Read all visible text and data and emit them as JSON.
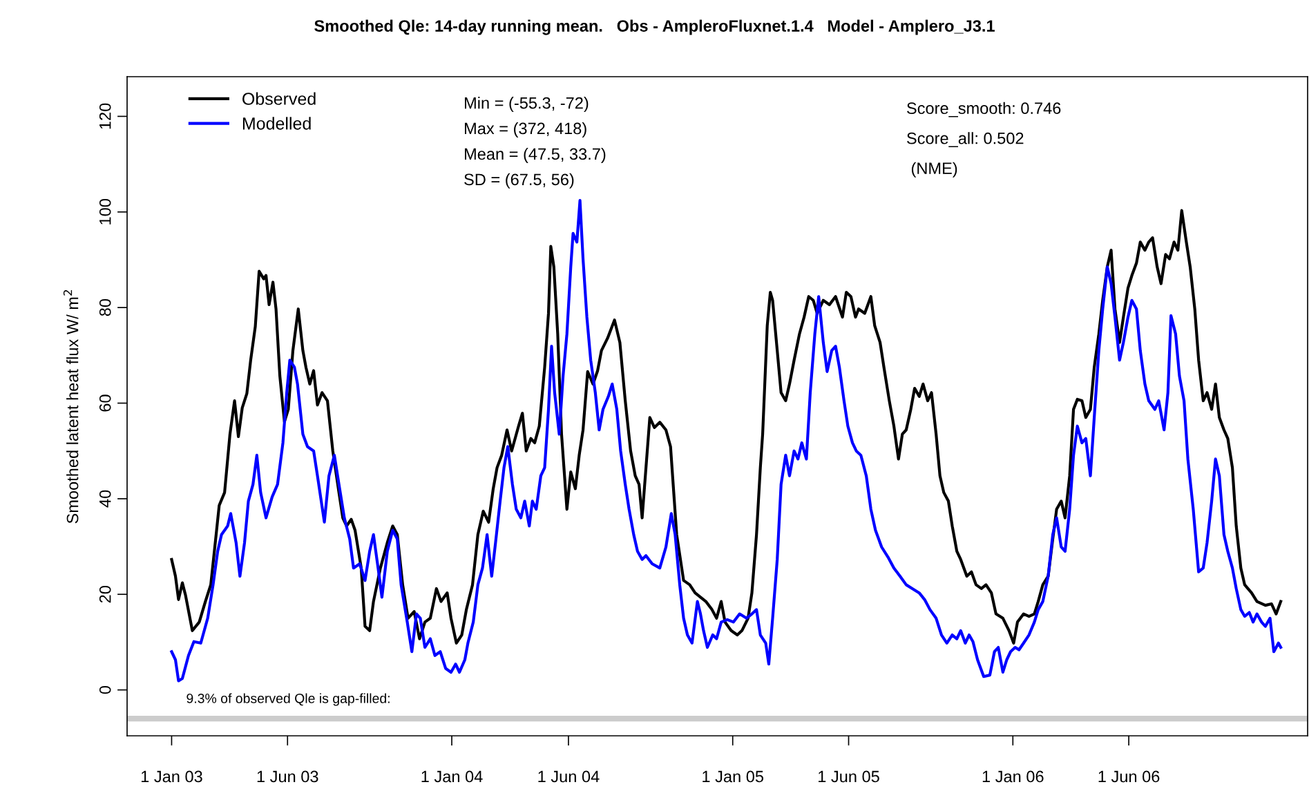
{
  "chart_data": {
    "type": "line",
    "title": "Smoothed Qle: 14-day running mean.   Obs - AmpleroFluxnet.1.4   Model - Amplero_J3.1",
    "ylabel": "Smoothed latent heat flux W/ m$^{2}$",
    "xlim": [
      "2002-11-04",
      "2007-01-20"
    ],
    "ylim": [
      -9.6,
      128.3
    ],
    "xticks": [
      {
        "value": "2003-01-01",
        "label": "1 Jan 03"
      },
      {
        "value": "2003-06-01",
        "label": "1 Jun 03"
      },
      {
        "value": "2004-01-01",
        "label": "1 Jan 04"
      },
      {
        "value": "2004-06-01",
        "label": "1 Jun 04"
      },
      {
        "value": "2005-01-01",
        "label": "1 Jan 05"
      },
      {
        "value": "2005-06-01",
        "label": "1 Jun 05"
      },
      {
        "value": "2006-01-01",
        "label": "1 Jan 06"
      },
      {
        "value": "2006-06-01",
        "label": "1 Jun 06"
      }
    ],
    "yticks": [
      0,
      20,
      40,
      60,
      80,
      100,
      120
    ],
    "grid": false,
    "legend": "top left",
    "marker": "none",
    "line_style": "solid",
    "annotations": [
      "Min = (-55.3, -72)",
      "Max = (372, 418)",
      "Mean = (47.5, 33.7)",
      "SD = (67.5, 56)",
      "Score_smooth: 0.746",
      "Score_all: 0.502",
      " (NME)",
      "9.3% of observed Qle is gap-filled:"
    ],
    "ref_lines": [
      {
        "axis": "y",
        "value": -6,
        "label": null,
        "color": "#cccccc"
      }
    ],
    "series": [
      {
        "name": "Observed",
        "color": "#000000",
        "x": [
          "2003-01-01",
          "2003-01-06",
          "2003-01-10",
          "2003-01-15",
          "2003-01-19",
          "2003-01-28",
          "2003-02-06",
          "2003-02-14",
          "2003-02-21",
          "2003-02-28",
          "2003-03-04",
          "2003-03-11",
          "2003-03-18",
          "2003-03-24",
          "2003-03-29",
          "2003-04-03",
          "2003-04-09",
          "2003-04-14",
          "2003-04-20",
          "2003-04-25",
          "2003-05-01",
          "2003-05-04",
          "2003-05-08",
          "2003-05-13",
          "2003-05-17",
          "2003-05-22",
          "2003-05-28",
          "2003-06-02",
          "2003-06-08",
          "2003-06-15",
          "2003-06-21",
          "2003-06-25",
          "2003-06-30",
          "2003-07-05",
          "2003-07-10",
          "2003-07-16",
          "2003-07-23",
          "2003-07-30",
          "2003-08-07",
          "2003-08-12",
          "2003-08-17",
          "2003-08-23",
          "2003-08-28",
          "2003-09-05",
          "2003-09-10",
          "2003-09-16",
          "2003-09-21",
          "2003-09-30",
          "2003-10-09",
          "2003-10-16",
          "2003-10-22",
          "2003-10-29",
          "2003-11-05",
          "2003-11-13",
          "2003-11-20",
          "2003-11-27",
          "2003-12-04",
          "2003-12-12",
          "2003-12-18",
          "2003-12-26",
          "2003-12-31",
          "2004-01-07",
          "2004-01-14",
          "2004-01-20",
          "2004-01-28",
          "2004-02-04",
          "2004-02-11",
          "2004-02-18",
          "2004-02-24",
          "2004-02-29",
          "2004-03-06",
          "2004-03-13",
          "2004-03-19",
          "2004-03-28",
          "2004-04-02",
          "2004-04-07",
          "2004-04-13",
          "2004-04-18",
          "2004-04-24",
          "2004-05-01",
          "2004-05-06",
          "2004-05-09",
          "2004-05-13",
          "2004-05-18",
          "2004-05-23",
          "2004-05-30",
          "2004-06-04",
          "2004-06-10",
          "2004-06-15",
          "2004-06-20",
          "2004-06-26",
          "2004-07-03",
          "2004-07-09",
          "2004-07-14",
          "2004-07-22",
          "2004-07-31",
          "2004-08-07",
          "2004-08-14",
          "2004-08-21",
          "2004-08-27",
          "2004-09-01",
          "2004-09-05",
          "2004-09-10",
          "2004-09-15",
          "2004-09-21",
          "2004-09-28",
          "2004-10-06",
          "2004-10-12",
          "2004-10-20",
          "2004-10-29",
          "2004-11-06",
          "2004-11-13",
          "2004-11-20",
          "2004-11-27",
          "2004-12-05",
          "2004-12-11",
          "2004-12-17",
          "2004-12-22",
          "2004-12-30",
          "2005-01-07",
          "2005-01-13",
          "2005-01-21",
          "2005-01-26",
          "2005-02-01",
          "2005-02-06",
          "2005-02-09",
          "2005-02-15",
          "2005-02-19",
          "2005-02-22",
          "2005-02-28",
          "2005-03-05",
          "2005-03-11",
          "2005-03-16",
          "2005-03-22",
          "2005-03-29",
          "2005-04-04",
          "2005-04-10",
          "2005-04-16",
          "2005-04-21",
          "2005-04-29",
          "2005-05-07",
          "2005-05-15",
          "2005-05-24",
          "2005-05-29",
          "2005-06-04",
          "2005-06-10",
          "2005-06-14",
          "2005-06-22",
          "2005-06-30",
          "2005-07-05",
          "2005-07-12",
          "2005-07-17",
          "2005-07-24",
          "2005-07-30",
          "2005-08-05",
          "2005-08-10",
          "2005-08-15",
          "2005-08-21",
          "2005-08-26",
          "2005-09-01",
          "2005-09-06",
          "2005-09-12",
          "2005-09-17",
          "2005-09-23",
          "2005-09-28",
          "2005-10-03",
          "2005-10-09",
          "2005-10-14",
          "2005-10-20",
          "2005-10-25",
          "2005-11-02",
          "2005-11-08",
          "2005-11-14",
          "2005-11-21",
          "2005-11-27",
          "2005-12-04",
          "2005-12-10",
          "2005-12-19",
          "2005-12-27",
          "2006-01-02",
          "2006-01-07",
          "2006-01-15",
          "2006-01-22",
          "2006-01-29",
          "2006-02-03",
          "2006-02-09",
          "2006-02-16",
          "2006-02-22",
          "2006-02-27",
          "2006-03-05",
          "2006-03-10",
          "2006-03-16",
          "2006-03-21",
          "2006-03-26",
          "2006-04-01",
          "2006-04-06",
          "2006-04-12",
          "2006-04-17",
          "2006-04-23",
          "2006-04-28",
          "2006-05-04",
          "2006-05-09",
          "2006-05-14",
          "2006-05-20",
          "2006-05-25",
          "2006-05-31",
          "2006-06-05",
          "2006-06-11",
          "2006-06-16",
          "2006-06-22",
          "2006-06-27",
          "2006-07-02",
          "2006-07-08",
          "2006-07-13",
          "2006-07-19",
          "2006-07-24",
          "2006-07-30",
          "2006-08-04",
          "2006-08-09",
          "2006-08-15",
          "2006-08-20",
          "2006-08-26",
          "2006-08-31",
          "2006-09-06",
          "2006-09-11",
          "2006-09-17",
          "2006-09-22",
          "2006-09-27",
          "2006-10-03",
          "2006-10-08",
          "2006-10-14",
          "2006-10-19",
          "2006-10-25",
          "2006-10-30",
          "2006-11-08",
          "2006-11-15",
          "2006-11-26",
          "2006-12-04",
          "2006-12-10",
          "2006-12-16"
        ],
        "values": [
          27.3,
          23.8,
          18.9,
          22.4,
          19.9,
          12.4,
          14.2,
          18.5,
          22,
          32.5,
          38.6,
          41.3,
          53.5,
          60.5,
          53,
          59,
          62,
          69,
          76,
          87.6,
          86,
          86.7,
          80.6,
          85.3,
          79.7,
          65.7,
          56.1,
          58.7,
          71,
          79.7,
          71,
          67.5,
          64,
          66.8,
          59.6,
          62.2,
          60.5,
          50,
          41.3,
          36,
          34.3,
          35.7,
          33.4,
          25.5,
          13.3,
          12.4,
          18.5,
          25.5,
          30.8,
          34.3,
          32.5,
          22,
          15,
          16.4,
          10.7,
          14.2,
          15,
          21.2,
          18.5,
          20.3,
          15,
          9.8,
          11.5,
          16.8,
          22,
          32.5,
          37.4,
          35.1,
          42.1,
          46.5,
          49.1,
          54.4,
          50,
          55.2,
          57.9,
          50,
          52.6,
          51.7,
          55.2,
          67.5,
          78.8,
          92.8,
          88.5,
          74.5,
          53.5,
          37.8,
          45.6,
          42.1,
          49.1,
          54.4,
          66.6,
          64,
          66.8,
          71,
          73.6,
          77.4,
          72.7,
          60.5,
          50,
          44.8,
          43,
          36,
          46.5,
          57,
          54.9,
          56,
          54.4,
          50.9,
          32.5,
          22.9,
          22,
          20.3,
          19.4,
          18.5,
          16.8,
          15,
          18.5,
          14.2,
          12.4,
          11.5,
          12.4,
          15,
          20.3,
          32.5,
          46.5,
          53.5,
          76.2,
          83.2,
          81.5,
          71,
          62.2,
          60.5,
          64,
          69,
          74.5,
          78,
          82.3,
          81.5,
          78.8,
          81.5,
          80.6,
          82.3,
          78,
          83.2,
          82.3,
          78,
          79.7,
          78.8,
          82.3,
          76.2,
          72.7,
          67.5,
          60.5,
          55.2,
          48.3,
          53.5,
          54.4,
          58.7,
          63.1,
          61.4,
          64,
          60.5,
          62.2,
          53.5,
          44.8,
          41.3,
          39.5,
          34.3,
          29,
          27.3,
          23.8,
          24.7,
          22,
          21.2,
          22,
          20.3,
          15.9,
          15,
          12.4,
          9.8,
          14.2,
          15.9,
          15.4,
          15.9,
          18.5,
          22,
          23.8,
          31.6,
          37.8,
          39.5,
          36,
          44.8,
          58.7,
          60.8,
          60.5,
          57,
          58.7,
          67.5,
          74.5,
          81.5,
          88.5,
          92,
          79.7,
          72.7,
          78,
          84.1,
          86.7,
          89.3,
          93.7,
          92,
          93.7,
          94.6,
          88.5,
          85,
          91.1,
          90.2,
          93.7,
          92,
          100.3,
          93.7,
          88.5,
          79.7,
          69,
          60.5,
          62.2,
          58.7,
          64,
          57,
          54.4,
          52.6,
          46.5,
          34.3,
          25.5,
          22,
          20.3,
          18.5,
          17.7,
          18,
          15.9,
          18.5
        ]
      },
      {
        "name": "Modelled",
        "color": "#0000ff",
        "x": [
          "2003-01-01",
          "2003-01-06",
          "2003-01-10",
          "2003-01-15",
          "2003-01-23",
          "2003-01-30",
          "2003-02-08",
          "2003-02-17",
          "2003-02-24",
          "2003-03-02",
          "2003-03-07",
          "2003-03-15",
          "2003-03-19",
          "2003-03-26",
          "2003-03-31",
          "2003-04-06",
          "2003-04-11",
          "2003-04-17",
          "2003-04-22",
          "2003-04-27",
          "2003-05-04",
          "2003-05-12",
          "2003-05-19",
          "2003-05-26",
          "2003-05-31",
          "2003-06-04",
          "2003-06-10",
          "2003-06-14",
          "2003-06-21",
          "2003-06-27",
          "2003-07-05",
          "2003-07-10",
          "2003-07-19",
          "2003-07-25",
          "2003-08-01",
          "2003-08-07",
          "2003-08-14",
          "2003-08-21",
          "2003-08-26",
          "2003-09-03",
          "2003-09-10",
          "2003-09-16",
          "2003-09-21",
          "2003-09-27",
          "2003-10-02",
          "2003-10-09",
          "2003-10-16",
          "2003-10-22",
          "2003-10-27",
          "2003-11-04",
          "2003-11-10",
          "2003-11-16",
          "2003-11-21",
          "2003-11-27",
          "2003-12-04",
          "2003-12-10",
          "2003-12-17",
          "2003-12-24",
          "2003-12-31",
          "2004-01-06",
          "2004-01-11",
          "2004-01-18",
          "2004-01-22",
          "2004-01-29",
          "2004-02-04",
          "2004-02-10",
          "2004-02-16",
          "2004-02-22",
          "2004-02-27",
          "2004-03-04",
          "2004-03-09",
          "2004-03-14",
          "2004-03-20",
          "2004-03-25",
          "2004-03-31",
          "2004-04-05",
          "2004-04-11",
          "2004-04-15",
          "2004-04-20",
          "2004-04-26",
          "2004-05-01",
          "2004-05-06",
          "2004-05-10",
          "2004-05-14",
          "2004-05-20",
          "2004-05-25",
          "2004-05-30",
          "2004-06-04",
          "2004-06-07",
          "2004-06-12",
          "2004-06-16",
          "2004-06-20",
          "2004-06-25",
          "2004-06-30",
          "2004-07-06",
          "2004-07-11",
          "2004-07-16",
          "2004-07-23",
          "2004-07-28",
          "2004-08-03",
          "2004-08-08",
          "2004-08-14",
          "2004-08-19",
          "2004-08-25",
          "2004-08-30",
          "2004-09-05",
          "2004-09-10",
          "2004-09-18",
          "2004-09-28",
          "2004-10-06",
          "2004-10-13",
          "2004-10-18",
          "2004-10-24",
          "2004-10-29",
          "2004-11-03",
          "2004-11-09",
          "2004-11-16",
          "2004-11-20",
          "2004-11-24",
          "2004-11-29",
          "2004-12-06",
          "2004-12-11",
          "2004-12-17",
          "2004-12-25",
          "2005-01-02",
          "2005-01-10",
          "2005-01-19",
          "2005-01-26",
          "2005-02-01",
          "2005-02-06",
          "2005-02-13",
          "2005-02-17",
          "2005-02-22",
          "2005-02-28",
          "2005-03-05",
          "2005-03-11",
          "2005-03-16",
          "2005-03-22",
          "2005-03-27",
          "2005-04-01",
          "2005-04-07",
          "2005-04-12",
          "2005-04-18",
          "2005-04-23",
          "2005-04-29",
          "2005-05-04",
          "2005-05-10",
          "2005-05-15",
          "2005-05-20",
          "2005-05-26",
          "2005-05-31",
          "2005-06-06",
          "2005-06-11",
          "2005-06-17",
          "2005-06-24",
          "2005-06-30",
          "2005-07-06",
          "2005-07-14",
          "2005-07-23",
          "2005-07-30",
          "2005-08-07",
          "2005-08-15",
          "2005-08-23",
          "2005-09-01",
          "2005-09-08",
          "2005-09-15",
          "2005-09-23",
          "2005-09-30",
          "2005-10-07",
          "2005-10-14",
          "2005-10-20",
          "2005-10-25",
          "2005-10-31",
          "2005-11-05",
          "2005-11-10",
          "2005-11-16",
          "2005-11-24",
          "2005-12-02",
          "2005-12-08",
          "2005-12-13",
          "2005-12-19",
          "2005-12-24",
          "2005-12-29",
          "2006-01-04",
          "2006-01-09",
          "2006-01-15",
          "2006-01-22",
          "2006-01-29",
          "2006-02-03",
          "2006-02-09",
          "2006-02-16",
          "2006-02-22",
          "2006-02-27",
          "2006-03-05",
          "2006-03-10",
          "2006-03-16",
          "2006-03-21",
          "2006-03-26",
          "2006-04-01",
          "2006-04-06",
          "2006-04-12",
          "2006-04-17",
          "2006-04-23",
          "2006-04-28",
          "2006-05-04",
          "2006-05-09",
          "2006-05-14",
          "2006-05-20",
          "2006-05-25",
          "2006-05-31",
          "2006-06-05",
          "2006-06-11",
          "2006-06-16",
          "2006-06-22",
          "2006-06-27",
          "2006-07-05",
          "2006-07-10",
          "2006-07-17",
          "2006-07-22",
          "2006-07-26",
          "2006-08-01",
          "2006-08-06",
          "2006-08-12",
          "2006-08-17",
          "2006-08-24",
          "2006-08-31",
          "2006-09-06",
          "2006-09-11",
          "2006-09-17",
          "2006-09-22",
          "2006-09-27",
          "2006-10-03",
          "2006-10-08",
          "2006-10-14",
          "2006-10-19",
          "2006-10-25",
          "2006-10-30",
          "2006-11-05",
          "2006-11-10",
          "2006-11-15",
          "2006-11-21",
          "2006-11-26",
          "2006-12-02",
          "2006-12-07",
          "2006-12-13",
          "2006-12-16"
        ],
        "values": [
          8,
          6.3,
          1.9,
          2.4,
          7.2,
          10.1,
          9.8,
          15,
          22,
          29,
          32.5,
          34.3,
          36.9,
          30.8,
          23.8,
          30.8,
          39.5,
          43,
          49.1,
          41.3,
          36,
          40.4,
          43,
          51.7,
          62.2,
          69,
          67.5,
          64,
          53.5,
          50.9,
          50,
          44.8,
          35.1,
          44.8,
          49.1,
          43,
          36,
          31.6,
          25.5,
          26.4,
          22.9,
          29,
          32.5,
          25.5,
          19.4,
          29,
          33.4,
          31.6,
          22,
          14.2,
          8,
          15.9,
          15,
          8.9,
          10.7,
          7.2,
          8,
          4.5,
          3.7,
          5.4,
          3.7,
          6.3,
          9.8,
          14.2,
          22,
          25.5,
          32.5,
          23.8,
          30.8,
          39.5,
          46.5,
          50.9,
          43,
          37.8,
          36,
          39.5,
          34.3,
          39.5,
          37.8,
          44.8,
          46.5,
          58.7,
          71.9,
          62.2,
          53.5,
          65.7,
          74.5,
          88.5,
          95.5,
          93.7,
          102.4,
          90.2,
          78,
          69,
          62.2,
          54.4,
          58.7,
          61.4,
          64,
          58.7,
          50,
          43,
          37.8,
          32.5,
          29,
          27.3,
          28.1,
          26.4,
          25.5,
          29.9,
          36.9,
          32.5,
          22,
          15,
          11.5,
          9.8,
          18.5,
          15.9,
          12.4,
          8.9,
          11.5,
          10.7,
          14.2,
          14.7,
          14.2,
          15.9,
          15,
          15.9,
          16.8,
          11.5,
          9.8,
          5.4,
          15,
          27.3,
          43,
          49.1,
          44.8,
          50,
          48.3,
          51.7,
          48.3,
          62.2,
          74.5,
          82.3,
          72.7,
          66.6,
          71,
          71.9,
          67.5,
          60.5,
          55.2,
          51.7,
          50,
          49.1,
          44.8,
          37.8,
          33.4,
          29.9,
          27.6,
          25.5,
          23.8,
          22,
          21.2,
          20.3,
          18.9,
          16.8,
          15,
          11.5,
          9.8,
          11.5,
          10.7,
          12.4,
          9.8,
          11.5,
          10.1,
          6.3,
          2.8,
          3.1,
          8,
          8.9,
          3.7,
          6.3,
          8,
          8.9,
          8.4,
          9.8,
          11.5,
          14.2,
          16.8,
          18.5,
          23.8,
          32.5,
          36,
          29.9,
          29,
          37.8,
          49.1,
          55.2,
          51.7,
          52.6,
          44.8,
          57,
          71,
          79.7,
          88.5,
          85,
          78,
          69,
          72.7,
          78,
          81.5,
          79.7,
          71,
          64,
          60.5,
          58.7,
          60.5,
          54.4,
          62.2,
          78.3,
          74.5,
          65.7,
          60.5,
          48.3,
          37.8,
          24.7,
          25.5,
          30.8,
          39.5,
          48.3,
          44.8,
          32.5,
          29,
          25.5,
          21.2,
          16.8,
          15.4,
          16.2,
          14.2,
          15.9,
          14.2,
          13.3,
          15,
          8,
          9.8,
          8.9
        ]
      }
    ]
  }
}
